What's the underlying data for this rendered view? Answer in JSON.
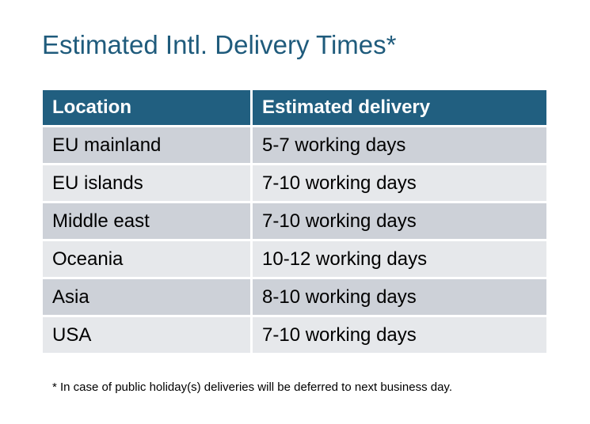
{
  "title": "Estimated Intl. Delivery Times*",
  "table": {
    "headers": [
      "Location",
      "Estimated delivery"
    ],
    "rows": [
      [
        "EU mainland",
        "5-7 working days"
      ],
      [
        "EU islands",
        "7-10 working days"
      ],
      [
        "Middle east",
        "7-10 working days"
      ],
      [
        "Oceania",
        "10-12 working days"
      ],
      [
        "Asia",
        "8-10 working days"
      ],
      [
        "USA",
        "7-10 working days"
      ]
    ]
  },
  "footnote": "* In case of public holiday(s) deliveries will be deferred to next business day.",
  "colors": {
    "header_bg": "#215f80",
    "title": "#1f5b7c",
    "row_dark": "#cdd1d8",
    "row_light": "#e6e8eb"
  }
}
